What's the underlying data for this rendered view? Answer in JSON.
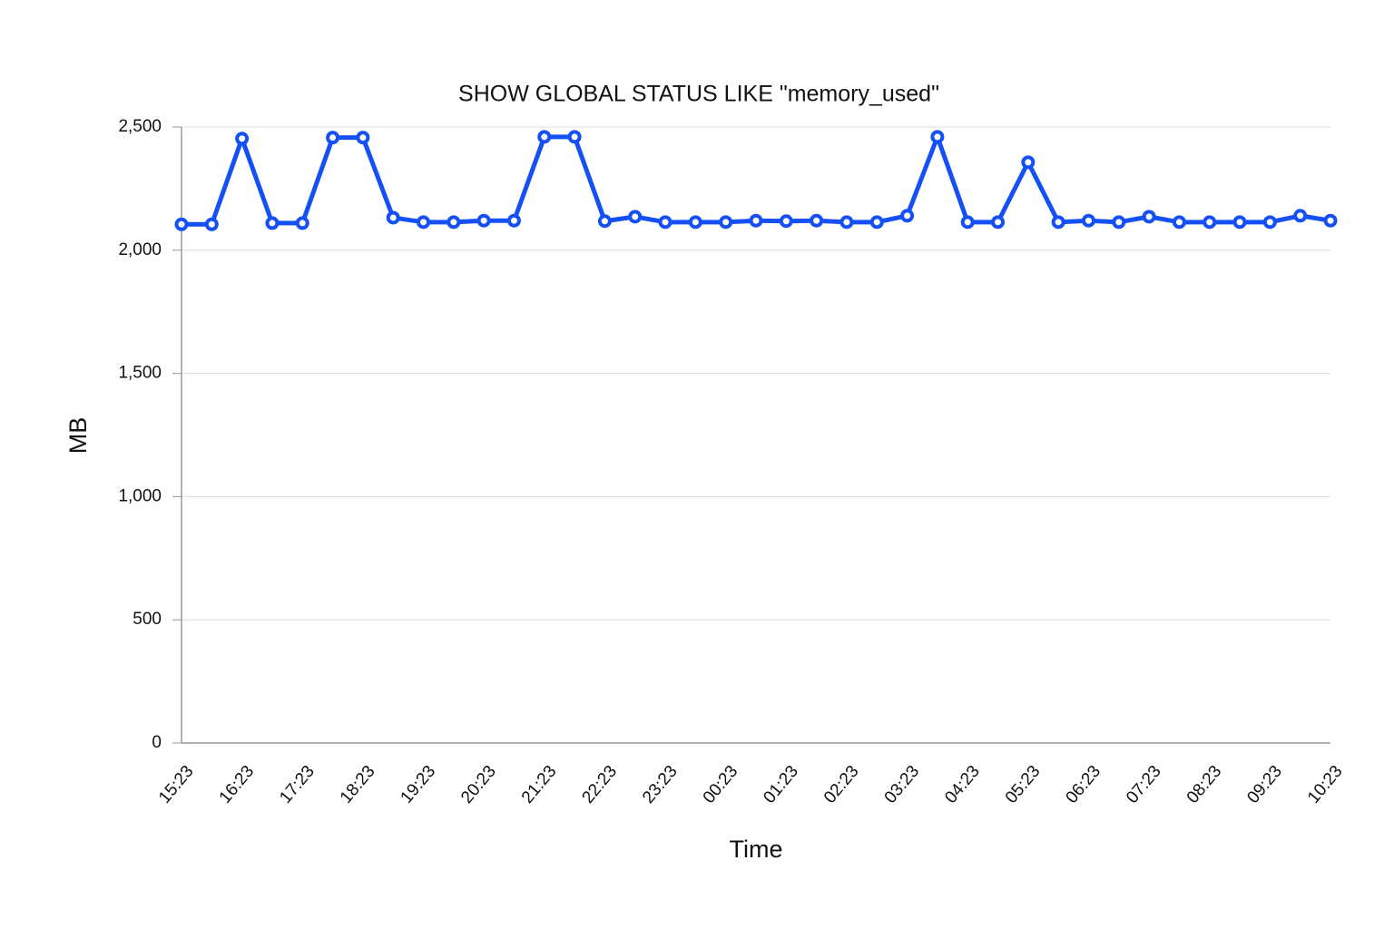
{
  "chart_data": {
    "type": "line",
    "title": "SHOW GLOBAL STATUS LIKE \"memory_used\"",
    "x_label": "Time",
    "y_label": "MB",
    "categories": [
      "15:23",
      null,
      "16:23",
      null,
      "17:23",
      null,
      "18:23",
      null,
      "19:23",
      null,
      "20:23",
      null,
      "21:23",
      null,
      "22:23",
      null,
      "23:23",
      null,
      "00:23",
      null,
      "01:23",
      null,
      "02:23",
      null,
      "03:23",
      null,
      "04:23",
      null,
      "05:23",
      null,
      "06:23",
      null,
      "07:23",
      null,
      "08:23",
      null,
      "09:23",
      null,
      "10:23"
    ],
    "series": [
      {
        "name": "memory_used",
        "color": "#1450f5",
        "values": [
          2105,
          2105,
          2453,
          2110,
          2110,
          2457,
          2457,
          2132,
          2114,
          2114,
          2120,
          2120,
          2460,
          2460,
          2118,
          2136,
          2114,
          2114,
          2114,
          2120,
          2118,
          2120,
          2114,
          2114,
          2140,
          2460,
          2114,
          2114,
          2357,
          2114,
          2120,
          2114,
          2136,
          2114,
          2114,
          2114,
          2114,
          2140,
          2120
        ]
      }
    ],
    "ylim": [
      0,
      2500
    ],
    "yticks": [
      0,
      500,
      {
        "value": 1000,
        "label": "1,000"
      },
      {
        "value": 1500,
        "label": "1,500"
      },
      {
        "value": 2000,
        "label": "2,000"
      },
      {
        "value": 2500,
        "label": "2,500"
      }
    ],
    "grid": true
  }
}
